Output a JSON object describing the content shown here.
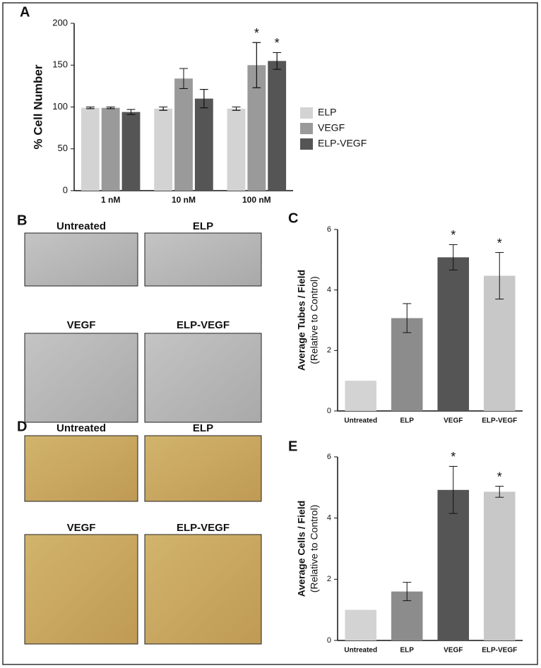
{
  "chart_data": [
    {
      "type": "bar",
      "panel_label": "A",
      "ylabel": [
        "% Cell Number"
      ],
      "categories": [
        "1 nM",
        "10 nM",
        "100 nM"
      ],
      "series": [
        {
          "name": "ELP",
          "color": "#d3d3d3",
          "values": [
            99,
            98,
            98
          ],
          "errors": [
            1,
            2,
            2
          ],
          "markers": [
            null,
            null,
            null
          ]
        },
        {
          "name": "VEGF",
          "color": "#9a9a9a",
          "values": [
            99,
            134,
            150
          ],
          "errors": [
            1,
            12,
            27
          ],
          "markers": [
            null,
            null,
            "*"
          ]
        },
        {
          "name": "ELP-VEGF",
          "color": "#555555",
          "values": [
            94,
            110,
            155
          ],
          "errors": [
            3,
            11,
            10
          ],
          "markers": [
            null,
            null,
            "*"
          ]
        }
      ],
      "ylim": [
        0,
        200
      ],
      "yticks": [
        0,
        50,
        100,
        150,
        200
      ]
    },
    {
      "type": "bar",
      "panel_label": "C",
      "ylabel": [
        "Average Tubes / Field",
        "(Relative to Control)"
      ],
      "categories": [
        "Untreated",
        "ELP",
        "VEGF",
        "ELP-VEGF"
      ],
      "values": [
        1,
        3.07,
        5.08,
        4.47
      ],
      "errors": [
        null,
        0.48,
        0.42,
        0.77
      ],
      "markers": [
        null,
        null,
        "*",
        "*"
      ],
      "colors": [
        "#d3d3d3",
        "#8c8c8c",
        "#555555",
        "#c8c8c8"
      ],
      "ylim": [
        0,
        6
      ],
      "yticks": [
        0,
        2,
        4,
        6
      ]
    },
    {
      "type": "bar",
      "panel_label": "E",
      "ylabel": [
        "Average Cells / Field",
        "(Relative to Control)"
      ],
      "categories": [
        "Untreated",
        "ELP",
        "VEGF",
        "ELP-VEGF"
      ],
      "values": [
        1,
        1.6,
        4.92,
        4.86
      ],
      "errors": [
        null,
        0.3,
        0.77,
        0.18
      ],
      "markers": [
        null,
        null,
        "*",
        "*"
      ],
      "colors": [
        "#d3d3d3",
        "#8c8c8c",
        "#555555",
        "#c8c8c8"
      ],
      "ylim": [
        0,
        6
      ],
      "yticks": [
        0,
        2,
        4,
        6
      ]
    }
  ],
  "image_panels": [
    {
      "panel_label": "B",
      "labels": [
        "Untreated",
        "ELP",
        "VEGF",
        "ELP-VEGF"
      ]
    },
    {
      "panel_label": "D",
      "labels": [
        "Untreated",
        "ELP",
        "VEGF",
        "ELP-VEGF"
      ]
    }
  ]
}
